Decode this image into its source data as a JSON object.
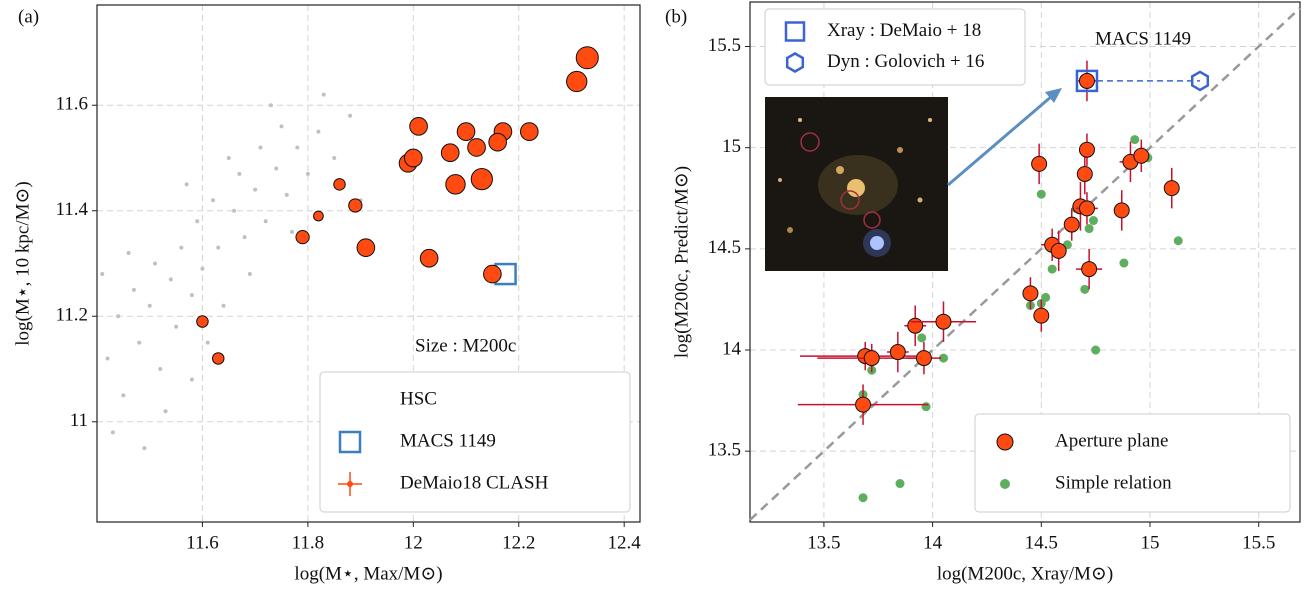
{
  "chart_data": [
    {
      "type": "scatter",
      "panel_label": "(a)",
      "xlabel": "log(M⋆, Max/M⊙)",
      "ylabel": "log(M⋆, 10 kpc/M⊙)",
      "xlim": [
        11.4,
        12.43
      ],
      "ylim": [
        10.81,
        11.79
      ],
      "xticks": [
        11.6,
        11.8,
        12.0,
        12.2,
        12.4
      ],
      "yticks": [
        11.0,
        11.2,
        11.4,
        11.6
      ],
      "grid": true,
      "legend": "lower right",
      "annotation": "Size : M200c",
      "series": [
        {
          "name": "HSC",
          "color": "#c0c0c0",
          "marker": "dot",
          "x": [
            11.42,
            11.44,
            11.45,
            11.47,
            11.48,
            11.5,
            11.51,
            11.52,
            11.54,
            11.55,
            11.56,
            11.58,
            11.59,
            11.6,
            11.62,
            11.63,
            11.64,
            11.66,
            11.67,
            11.68,
            11.7,
            11.71,
            11.72,
            11.74,
            11.75,
            11.76,
            11.78,
            11.8,
            11.82,
            11.85,
            11.88,
            11.43,
            11.46,
            11.53,
            11.57,
            11.61,
            11.65,
            11.69,
            11.73,
            11.77,
            11.9,
            11.41,
            11.49,
            11.58,
            11.83
          ],
          "values": [
            11.12,
            11.2,
            11.05,
            11.25,
            11.15,
            11.22,
            11.3,
            11.1,
            11.27,
            11.18,
            11.33,
            11.24,
            11.38,
            11.29,
            11.42,
            11.33,
            11.22,
            11.4,
            11.47,
            11.35,
            11.44,
            11.52,
            11.38,
            11.48,
            11.56,
            11.43,
            11.52,
            11.47,
            11.55,
            11.5,
            11.58,
            10.98,
            11.32,
            11.02,
            11.45,
            11.15,
            11.5,
            11.28,
            11.6,
            11.36,
            11.42,
            11.28,
            10.95,
            11.08,
            11.62
          ]
        },
        {
          "name": "MACS 1149",
          "color": "#3a7fbf",
          "marker": "square",
          "x": [
            12.175
          ],
          "values": [
            11.28
          ]
        },
        {
          "name": "DeMaio18 CLASH",
          "color": "#ff4a12",
          "marker": "circle",
          "x": [
            12.33,
            12.31,
            12.01,
            12.1,
            12.17,
            12.22,
            12.16,
            11.99,
            12.0,
            12.07,
            12.12,
            12.08,
            12.13,
            11.86,
            11.89,
            11.82,
            11.79,
            11.91,
            12.03,
            12.15,
            11.6,
            11.63
          ],
          "values": [
            11.69,
            11.645,
            11.56,
            11.55,
            11.55,
            11.55,
            11.53,
            11.49,
            11.5,
            11.51,
            11.52,
            11.45,
            11.46,
            11.45,
            11.41,
            11.39,
            11.35,
            11.33,
            11.31,
            11.28,
            11.19,
            11.12
          ],
          "m200c": [
            15.2,
            15.0,
            14.7,
            14.7,
            14.7,
            14.7,
            14.7,
            14.7,
            14.7,
            14.7,
            14.7,
            14.9,
            15.1,
            14.0,
            14.2,
            13.8,
            14.2,
            14.7,
            14.7,
            14.7,
            14.0,
            14.0
          ]
        }
      ]
    },
    {
      "type": "scatter",
      "panel_label": "(b)",
      "xlabel": "log(M200c, Xray/M⊙)",
      "ylabel": "log(M200c, Predict/M⊙)",
      "xlim": [
        13.16,
        15.69
      ],
      "ylim": [
        13.15,
        15.72
      ],
      "xticks": [
        13.5,
        14.0,
        14.5,
        15.0,
        15.5
      ],
      "yticks": [
        13.5,
        14.0,
        14.5,
        15.0,
        15.5
      ],
      "grid": true,
      "identity_line": true,
      "annotation": "MACS 1149",
      "series": [
        {
          "name": "Aperture plane",
          "color": "#ff4a12",
          "marker": "circle",
          "legend": "lower right",
          "error_color": "#c8102e",
          "x": [
            13.68,
            13.69,
            13.72,
            13.84,
            13.92,
            13.96,
            14.05,
            14.45,
            14.5,
            14.49,
            14.55,
            14.58,
            14.64,
            14.68,
            14.71,
            14.7,
            14.71,
            14.72,
            14.87,
            14.91,
            14.96,
            15.1,
            14.71
          ],
          "values": [
            13.73,
            13.97,
            13.96,
            13.99,
            14.12,
            13.96,
            14.14,
            14.28,
            14.17,
            14.92,
            14.52,
            14.49,
            14.62,
            14.71,
            14.7,
            14.87,
            14.99,
            14.4,
            14.69,
            14.93,
            14.96,
            14.8,
            15.33
          ],
          "yerr": [
            0.1,
            0.07,
            0.07,
            0.1,
            0.1,
            0.08,
            0.1,
            0.08,
            0.08,
            0.1,
            0.08,
            0.1,
            0.08,
            0.12,
            0.08,
            0.1,
            0.08,
            0.1,
            0.1,
            0.1,
            0.08,
            0.1,
            0.1
          ],
          "xerr": [
            0.3,
            0.3,
            0.25,
            0.05,
            0.05,
            0.08,
            0.15,
            0.03,
            0.03,
            0.03,
            0.05,
            0.03,
            0.03,
            0.03,
            0.05,
            0.03,
            0.02,
            0.06,
            0.03,
            0.05,
            0.03,
            0.03,
            0.05
          ]
        },
        {
          "name": "Simple relation",
          "color": "#5fae5f",
          "marker": "dot",
          "legend": "lower right",
          "x": [
            13.68,
            13.68,
            13.72,
            13.85,
            13.97,
            14.05,
            13.95,
            14.5,
            14.52,
            14.5,
            14.55,
            14.62,
            14.66,
            14.7,
            14.72,
            14.75,
            14.88,
            14.93,
            14.99,
            15.13,
            14.45,
            14.74
          ],
          "values": [
            13.27,
            13.78,
            13.9,
            13.34,
            13.72,
            13.96,
            14.06,
            14.23,
            14.26,
            14.77,
            14.4,
            14.52,
            14.7,
            14.3,
            14.6,
            14.0,
            14.43,
            15.04,
            14.95,
            14.54,
            14.22,
            14.64
          ]
        },
        {
          "name": "Xray : DeMaio + 18",
          "color": "#3a63d6",
          "marker": "square",
          "legend": "upper left",
          "x": [
            14.71
          ],
          "values": [
            15.33
          ]
        },
        {
          "name": "Dyn : Golovich + 16",
          "color": "#3a63d6",
          "marker": "hexagon",
          "legend": "upper left",
          "x": [
            15.23
          ],
          "values": [
            15.33
          ]
        }
      ]
    }
  ]
}
